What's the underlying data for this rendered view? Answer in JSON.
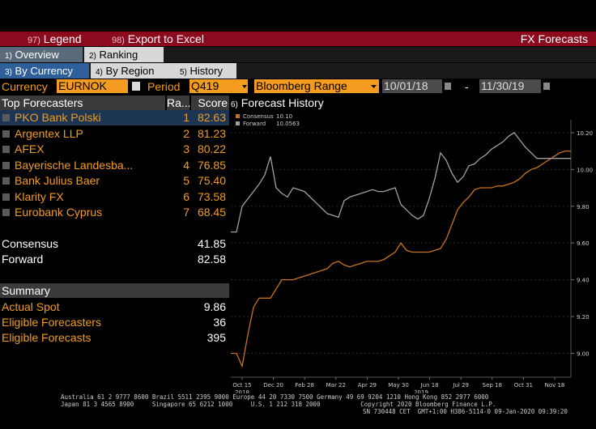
{
  "toolbar": {
    "legend_num": "97)",
    "legend_label": "Legend",
    "export_num": "98)",
    "export_label": "Export to Excel",
    "title": "FX Forecasts"
  },
  "tabs_top": [
    {
      "num": "1)",
      "label": "Overview"
    },
    {
      "num": "2)",
      "label": "Ranking"
    }
  ],
  "tabs_sub": [
    {
      "num": "3)",
      "label": "By Currency"
    },
    {
      "num": "4)",
      "label": "By Region"
    },
    {
      "num": "5)",
      "label": "History"
    }
  ],
  "controls": {
    "currency_label": "Currency",
    "currency_value": "EURNOK",
    "period_label": "Period",
    "period_value": "Q419",
    "range_value": "Bloomberg Range",
    "date_from": "10/01/18",
    "date_sep": "-",
    "date_to": "11/30/19"
  },
  "forecasters": {
    "header_name": "Top Forecasters",
    "header_rank": "Ra...",
    "header_score": "Score",
    "rows": [
      {
        "name": "PKO Bank Polski",
        "rank": "1",
        "score": "82.63"
      },
      {
        "name": "Argentex LLP",
        "rank": "2",
        "score": "81.23"
      },
      {
        "name": "AFEX",
        "rank": "3",
        "score": "80.22"
      },
      {
        "name": "Bayerische Landesba...",
        "rank": "4",
        "score": "76.85"
      },
      {
        "name": "Bank Julius Baer",
        "rank": "5",
        "score": "75.40"
      },
      {
        "name": "Klarity FX",
        "rank": "6",
        "score": "73.58"
      },
      {
        "name": "Eurobank Cyprus",
        "rank": "7",
        "score": "68.45"
      }
    ],
    "consensus_label": "Consensus",
    "consensus_value": "41.85",
    "forward_label": "Forward",
    "forward_value": "82.58"
  },
  "summary": {
    "header": "Summary",
    "actual_spot_label": "Actual Spot",
    "actual_spot_value": "9.86",
    "eligible_forecasters_label": "Eligible Forecasters",
    "eligible_forecasters_value": "36",
    "eligible_forecasts_label": "Eligible Forecasts",
    "eligible_forecasts_value": "395"
  },
  "chart_data": {
    "type": "line",
    "title": "Forecast History",
    "title_num": "6)",
    "x_tick_labels": [
      "Oct 15",
      "Dec 20",
      "Feb 28",
      "Mar 22",
      "Apr 29",
      "May 30",
      "Jun 18",
      "Jul 29",
      "Sep 18",
      "Oct 31",
      "Nov 18"
    ],
    "year_labels": [
      "2018",
      "2019"
    ],
    "y_tick_labels": [
      "9.00",
      "9.20",
      "9.40",
      "9.60",
      "9.80",
      "10.00",
      "10.20"
    ],
    "ylim": [
      8.87,
      10.27
    ],
    "x": [
      0,
      2,
      4,
      6,
      8,
      10,
      12,
      14,
      16,
      18,
      20,
      22,
      24,
      26,
      28,
      30,
      32,
      34,
      36,
      38,
      40,
      42,
      44,
      46,
      48,
      50,
      52,
      54,
      56,
      58,
      60,
      62,
      64,
      66,
      68,
      70,
      72,
      74,
      76,
      78,
      80,
      82,
      84,
      86,
      88,
      90,
      92,
      94,
      96,
      98,
      100,
      102,
      104,
      106,
      108,
      110,
      112,
      114,
      116,
      118,
      120
    ],
    "legend_position": "top-left",
    "series": [
      {
        "name": "Consensus",
        "legend_value": "10.10",
        "color": "#c8721e",
        "values": [
          9.0,
          9.0,
          8.93,
          9.1,
          9.25,
          9.3,
          9.3,
          9.3,
          9.35,
          9.4,
          9.4,
          9.4,
          9.41,
          9.42,
          9.43,
          9.44,
          9.45,
          9.46,
          9.49,
          9.5,
          9.48,
          9.47,
          9.48,
          9.49,
          9.5,
          9.5,
          9.5,
          9.51,
          9.53,
          9.55,
          9.6,
          9.56,
          9.55,
          9.55,
          9.55,
          9.55,
          9.56,
          9.57,
          9.62,
          9.7,
          9.78,
          9.82,
          9.85,
          9.89,
          9.9,
          9.9,
          9.9,
          9.91,
          9.91,
          9.92,
          9.93,
          9.95,
          9.98,
          10.0,
          10.01,
          10.03,
          10.05,
          10.07,
          10.09,
          10.1,
          10.1
        ]
      },
      {
        "name": "Forward",
        "legend_value": "10.0563",
        "color": "#a0a0a0",
        "values": [
          9.66,
          9.66,
          9.8,
          9.84,
          9.88,
          9.92,
          9.97,
          10.07,
          9.9,
          9.87,
          9.85,
          9.9,
          9.89,
          9.88,
          9.85,
          9.82,
          9.79,
          9.76,
          9.75,
          9.74,
          9.83,
          9.85,
          9.86,
          9.87,
          9.88,
          9.89,
          9.88,
          9.88,
          9.89,
          9.9,
          9.81,
          9.78,
          9.75,
          9.73,
          9.75,
          9.84,
          9.95,
          10.09,
          10.05,
          9.98,
          9.93,
          9.96,
          10.02,
          10.03,
          10.06,
          10.08,
          10.11,
          10.13,
          10.15,
          10.18,
          10.2,
          10.16,
          10.12,
          10.09,
          10.06,
          10.06,
          10.06,
          10.06,
          10.06,
          10.06,
          10.06
        ]
      }
    ]
  },
  "footer": {
    "line1": "Australia 61 2 9777 8600 Brazil 5511 2395 9000 Europe 44 20 7330 7500 Germany 49 69 9204 1210 Hong Kong 852 2977 6000",
    "line2": "Japan 81 3 4565 8900     Singapore 65 6212 1000     U.S. 1 212 318 2000           Copyright 2020 Bloomberg Finance L.P.",
    "line3": "SN 730448 CET  GMT+1:00 H386-5114-0 09-Jan-2020 09:39:20"
  }
}
